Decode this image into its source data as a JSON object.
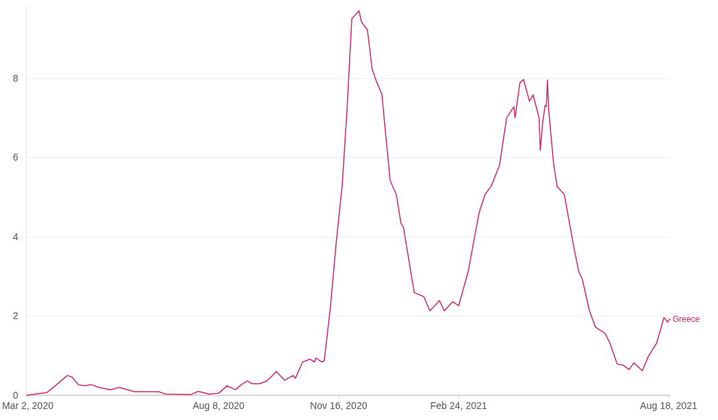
{
  "chart_data": {
    "type": "line",
    "x": [
      "2020-03-01",
      "2020-03-18",
      "2020-03-25",
      "2020-04-04",
      "2020-04-08",
      "2020-04-13",
      "2020-04-18",
      "2020-04-24",
      "2020-04-30",
      "2020-05-10",
      "2020-05-17",
      "2020-05-30",
      "2020-06-19",
      "2020-06-25",
      "2020-07-16",
      "2020-07-22",
      "2020-07-31",
      "2020-08-08",
      "2020-08-15",
      "2020-08-22",
      "2020-08-27",
      "2020-09-01",
      "2020-09-05",
      "2020-09-11",
      "2020-09-17",
      "2020-09-22",
      "2020-09-25",
      "2020-10-02",
      "2020-10-09",
      "2020-10-11",
      "2020-10-17",
      "2020-10-23",
      "2020-10-27",
      "2020-10-28",
      "2020-11-02",
      "2020-11-04",
      "2020-11-09",
      "2020-11-14",
      "2020-11-19",
      "2020-11-23",
      "2020-11-27",
      "2020-11-30",
      "2020-12-03",
      "2020-12-05",
      "2020-12-10",
      "2020-12-14",
      "2020-12-18",
      "2020-12-22",
      "2020-12-26",
      "2020-12-29",
      "2021-01-03",
      "2021-01-07",
      "2021-01-09",
      "2021-01-18",
      "2021-01-26",
      "2021-01-31",
      "2021-02-08",
      "2021-02-12",
      "2021-02-19",
      "2021-02-24",
      "2021-03-04",
      "2021-03-13",
      "2021-03-18",
      "2021-03-23",
      "2021-03-30",
      "2021-04-05",
      "2021-04-11",
      "2021-04-12",
      "2021-04-16",
      "2021-04-19",
      "2021-04-24",
      "2021-04-27",
      "2021-05-02",
      "2021-05-03",
      "2021-05-05",
      "2021-05-07",
      "2021-05-08",
      "2021-05-09",
      "2021-05-10",
      "2021-05-14",
      "2021-05-17",
      "2021-05-23",
      "2021-05-31",
      "2021-06-04",
      "2021-06-07",
      "2021-06-13",
      "2021-06-18",
      "2021-06-26",
      "2021-06-30",
      "2021-07-06",
      "2021-07-11",
      "2021-07-16",
      "2021-07-20",
      "2021-07-27",
      "2021-08-01",
      "2021-08-08",
      "2021-08-14",
      "2021-08-17",
      "2021-08-19"
    ],
    "series": [
      {
        "name": "Greece",
        "color": "#d6246a",
        "values": [
          0,
          0.07,
          0.24,
          0.5,
          0.46,
          0.27,
          0.24,
          0.27,
          0.2,
          0.14,
          0.2,
          0.09,
          0.09,
          0.03,
          0.02,
          0.1,
          0.03,
          0.05,
          0.24,
          0.14,
          0.27,
          0.36,
          0.29,
          0.29,
          0.36,
          0.5,
          0.6,
          0.38,
          0.5,
          0.43,
          0.84,
          0.91,
          0.84,
          0.94,
          0.84,
          0.87,
          2.17,
          3.85,
          5.3,
          7.2,
          9.5,
          9.6,
          9.7,
          9.42,
          9.22,
          8.22,
          7.88,
          7.6,
          6.34,
          5.41,
          5.07,
          4.33,
          4.24,
          2.59,
          2.49,
          2.13,
          2.39,
          2.13,
          2.36,
          2.26,
          3.13,
          4.6,
          5.07,
          5.27,
          5.8,
          7.0,
          7.28,
          7.0,
          7.88,
          7.97,
          7.42,
          7.58,
          7.0,
          6.18,
          6.88,
          7.31,
          7.28,
          7.95,
          7.21,
          5.87,
          5.27,
          5.07,
          3.73,
          3.13,
          2.93,
          2.13,
          1.72,
          1.56,
          1.32,
          0.79,
          0.76,
          0.65,
          0.82,
          0.62,
          0.98,
          1.32,
          1.96,
          1.85,
          1.92
        ]
      }
    ],
    "xlim": [
      "2020-03-01",
      "2021-08-19"
    ],
    "xticks": [
      {
        "value": "2020-03-02",
        "label": "Mar 2, 2020"
      },
      {
        "value": "2020-08-08",
        "label": "Aug 8, 2020"
      },
      {
        "value": "2020-11-16",
        "label": "Nov 16, 2020"
      },
      {
        "value": "2021-02-24",
        "label": "Feb 24, 2021"
      },
      {
        "value": "2021-08-18",
        "label": "Aug 18, 2021"
      }
    ],
    "ylim": [
      0,
      9.8
    ],
    "yticks": [
      0,
      2,
      4,
      6,
      8
    ],
    "grid": "y",
    "marker": "none",
    "line_style": "solid",
    "legend": false
  }
}
